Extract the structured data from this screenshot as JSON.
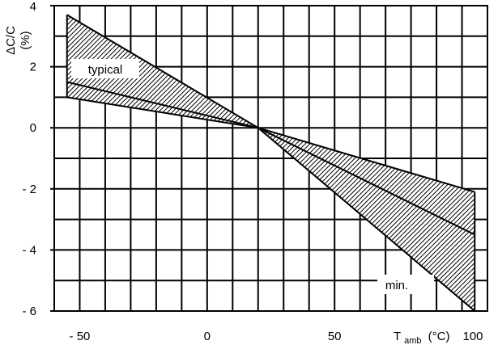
{
  "chart_data": {
    "type": "area",
    "title": "",
    "ylabel": "ΔC/C",
    "ylabel_unit": "(%)",
    "xlabel_main": "T",
    "xlabel_sub": "amb",
    "xlabel_unit": "(°C)",
    "xlim": [
      -60,
      110
    ],
    "ylim": [
      -6,
      4
    ],
    "grid": true,
    "xticks": [
      {
        "value": -50,
        "label": "- 50"
      },
      {
        "value": 0,
        "label": "0"
      },
      {
        "value": 50,
        "label": "50"
      },
      {
        "value": 100,
        "label": "100"
      }
    ],
    "yticks": [
      {
        "value": 4,
        "label": "4"
      },
      {
        "value": 2,
        "label": "2"
      },
      {
        "value": 0,
        "label": "0"
      },
      {
        "value": -2,
        "label": "- 2"
      },
      {
        "value": -4,
        "label": "- 4"
      },
      {
        "value": -6,
        "label": "- 6"
      }
    ],
    "annotations": [
      {
        "text": "typical",
        "x": -45,
        "y": 1.9
      },
      {
        "text": "min.",
        "x": 77,
        "y": -5.2
      }
    ],
    "series": [
      {
        "x": [
          -55,
          20,
          105
        ],
        "y": [
          3.7,
          0,
          -6
        ]
      },
      {
        "x": [
          -55,
          20,
          105
        ],
        "y": [
          1,
          0,
          -2.1
        ]
      },
      {
        "x": [
          -55,
          20,
          105
        ],
        "y": [
          1.5,
          0,
          -3.5
        ]
      }
    ]
  }
}
